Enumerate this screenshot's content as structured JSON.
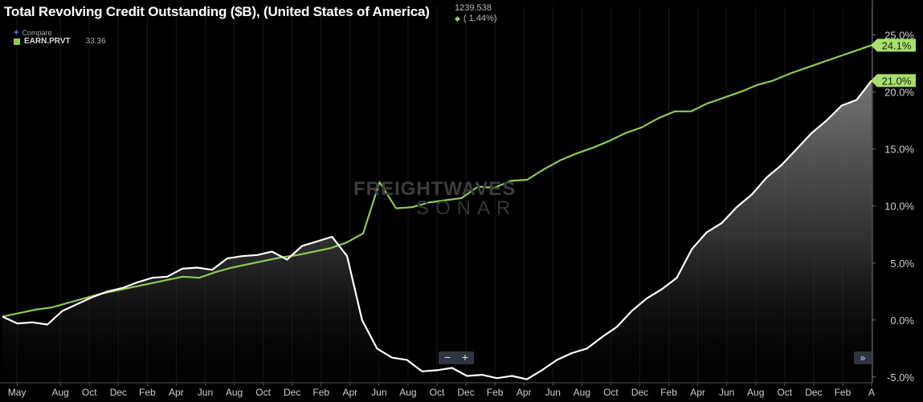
{
  "header": {
    "title": "Total Revolving Credit Outstanding ($B), (United States of America)",
    "latest_value": "1239.538",
    "latest_change": "( 1.44%)"
  },
  "legend": {
    "compare_label": "Compare",
    "series_code": "EARN.PRVT",
    "series_value": "33.36"
  },
  "watermark": {
    "line1": "FREIGHTWAVES",
    "line2": "SONAR"
  },
  "controls": {
    "zoom_out": "−",
    "zoom_in": "+",
    "scroll_right": "»"
  },
  "colors": {
    "green": "#8ecb4f",
    "white": "#ffffff",
    "background": "#000000"
  },
  "chart_data": {
    "type": "line",
    "y_axis_side": "right",
    "ylim": [
      -5.5,
      27.5
    ],
    "yticks": [
      "25.0%",
      "20.0%",
      "15.0%",
      "10.0%",
      "5.0%",
      "0.0%",
      "-5.0%"
    ],
    "ytick_values": [
      25,
      20,
      15,
      10,
      5,
      0,
      -5
    ],
    "xticks": [
      "May",
      "Aug",
      "Oct",
      "Dec",
      "Feb",
      "Apr",
      "Jun",
      "Aug",
      "Oct",
      "Dec",
      "Feb",
      "Apr",
      "Jun",
      "Aug",
      "Oct",
      "Dec",
      "Feb",
      "Apr",
      "Jun",
      "Aug",
      "Oct",
      "Dec",
      "Feb",
      "Apr",
      "Jun",
      "Aug",
      "Oct",
      "Dec",
      "Feb",
      "A"
    ],
    "xtick_index": [
      1,
      4,
      6,
      8,
      10,
      12,
      14,
      16,
      18,
      20,
      22,
      24,
      26,
      28,
      30,
      32,
      34,
      36,
      38,
      40,
      42,
      44,
      46,
      48,
      50,
      52,
      54,
      56,
      58,
      60
    ],
    "series": [
      {
        "color": "#8ecb4f",
        "end_label": "24.1%",
        "values": [
          0.3,
          0.6,
          0.9,
          1.1,
          1.5,
          1.9,
          2.3,
          2.6,
          2.9,
          3.2,
          3.5,
          3.8,
          3.7,
          4.2,
          4.6,
          4.9,
          5.2,
          5.5,
          5.7,
          6.0,
          6.3,
          6.8,
          7.6,
          12.1,
          9.8,
          9.9,
          10.3,
          10.5,
          10.7,
          11.7,
          11.6,
          12.2,
          12.3,
          13.2,
          14.0,
          14.6,
          15.1,
          15.7,
          16.4,
          16.9,
          17.7,
          18.3,
          18.3,
          19.0,
          19.5,
          20.0,
          20.6,
          21.0,
          21.6,
          22.1,
          22.6,
          23.1,
          23.6,
          24.1
        ]
      },
      {
        "color": "#ffffff",
        "end_label": "21.0%",
        "values": [
          0.3,
          -0.3,
          -0.2,
          -0.4,
          0.8,
          1.4,
          2.0,
          2.5,
          2.8,
          3.3,
          3.7,
          3.8,
          4.5,
          4.6,
          4.4,
          5.4,
          5.6,
          5.7,
          6.0,
          5.3,
          6.5,
          6.9,
          7.3,
          5.6,
          0.0,
          -2.5,
          -3.3,
          -3.5,
          -4.5,
          -4.4,
          -4.2,
          -4.9,
          -4.8,
          -5.1,
          -4.9,
          -5.2,
          -4.4,
          -3.5,
          -2.9,
          -2.5,
          -1.5,
          -0.6,
          0.8,
          1.9,
          2.7,
          3.7,
          6.2,
          7.7,
          8.5,
          9.9,
          11.0,
          12.5,
          13.6,
          15.0,
          16.4,
          17.5,
          18.8,
          19.3,
          21.0
        ]
      }
    ]
  }
}
